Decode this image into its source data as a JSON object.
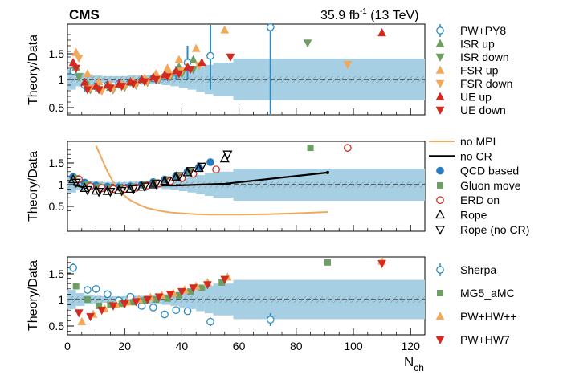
{
  "header": {
    "experiment": "CMS",
    "lumi_value": "35.9 fb",
    "lumi_exponent": "-1",
    "energy": "(13 TeV)"
  },
  "x_axis": {
    "label_main": "N",
    "label_sub": "ch",
    "ticks": [
      "0",
      "20",
      "40",
      "60",
      "80",
      "100",
      "120"
    ],
    "range": [
      0,
      125
    ]
  },
  "colors": {
    "band": "#a6cfe3",
    "pwpy8": "#2b8cc4",
    "isr": "#6d9f63",
    "fsr": "#f2a85a",
    "ue": "#d22a1e",
    "qcd": "#2b7bbf",
    "gluon": "#6d9f63",
    "nompi": "#f2a85a",
    "nocr": "#000000"
  },
  "chart_data": [
    {
      "type": "scatter",
      "ylabel": "Theory/Data",
      "ylim": [
        0.35,
        1.95
      ],
      "yticks": [
        "0.5",
        "1",
        "1.5"
      ],
      "uncertainty_band": {
        "x_edges": [
          0,
          3,
          6,
          9,
          12,
          15,
          18,
          21,
          24,
          27,
          30,
          33,
          36,
          39,
          42,
          45,
          48,
          51,
          58,
          125
        ],
        "up": [
          1.18,
          1.12,
          1.09,
          1.07,
          1.06,
          1.06,
          1.06,
          1.07,
          1.07,
          1.08,
          1.08,
          1.1,
          1.12,
          1.15,
          1.18,
          1.22,
          1.26,
          1.3,
          1.37
        ],
        "down": [
          0.82,
          0.88,
          0.91,
          0.93,
          0.94,
          0.94,
          0.94,
          0.93,
          0.93,
          0.92,
          0.92,
          0.9,
          0.88,
          0.85,
          0.82,
          0.78,
          0.74,
          0.7,
          0.63
        ]
      },
      "series": [
        {
          "name": "PW+PY8",
          "marker": "circle-open",
          "color_key": "pwpy8",
          "x": [
            2,
            6,
            10,
            14,
            18,
            22,
            26,
            30,
            34,
            38,
            42,
            50,
            71
          ],
          "y": [
            1.15,
            0.9,
            0.88,
            0.9,
            0.92,
            0.95,
            0.98,
            1.02,
            1.05,
            1.12,
            1.3,
            1.42,
            1.93
          ],
          "err": [
            0.05,
            0.12,
            0.04,
            0.03,
            0.03,
            0.03,
            0.03,
            0.04,
            0.06,
            0.12,
            0.3,
            0.6,
            1.6
          ]
        },
        {
          "name": "ISR up",
          "marker": "triangle-up",
          "color_key": "isr",
          "x": [
            3,
            7,
            11,
            15,
            19,
            23,
            27,
            31,
            35,
            39,
            44
          ],
          "y": [
            1.22,
            0.92,
            0.85,
            0.86,
            0.9,
            0.95,
            1.0,
            1.05,
            1.12,
            1.22,
            1.35
          ]
        },
        {
          "name": "ISR down",
          "marker": "triangle-down",
          "color_key": "isr",
          "x": [
            4,
            8,
            12,
            16,
            20,
            24,
            28,
            32,
            36,
            40,
            44,
            84
          ],
          "y": [
            1.05,
            0.82,
            0.8,
            0.82,
            0.86,
            0.9,
            0.95,
            1.0,
            1.05,
            1.1,
            1.18,
            1.65
          ]
        },
        {
          "name": "FSR up",
          "marker": "triangle-up",
          "color_key": "fsr",
          "x": [
            3,
            7,
            11,
            15,
            19,
            23,
            27,
            31,
            35,
            39,
            45,
            55
          ],
          "y": [
            1.48,
            1.1,
            0.96,
            0.9,
            0.92,
            0.96,
            1.02,
            1.1,
            1.2,
            1.35,
            1.55,
            1.88
          ]
        },
        {
          "name": "FSR down",
          "marker": "triangle-down",
          "color_key": "fsr",
          "x": [
            4,
            8,
            12,
            16,
            20,
            24,
            28,
            32,
            36,
            40,
            46,
            98
          ],
          "y": [
            1.38,
            0.85,
            0.8,
            0.84,
            0.88,
            0.92,
            0.97,
            1.02,
            1.08,
            1.15,
            1.25,
            1.27
          ]
        },
        {
          "name": "UE up",
          "marker": "triangle-up",
          "color_key": "ue",
          "x": [
            2,
            6,
            10,
            14,
            18,
            22,
            26,
            30,
            34,
            38,
            42,
            47,
            110
          ],
          "y": [
            1.3,
            0.95,
            0.88,
            0.9,
            0.92,
            0.96,
            1.0,
            1.04,
            1.08,
            1.15,
            1.22,
            1.3,
            1.83
          ]
        },
        {
          "name": "UE down",
          "marker": "triangle-down",
          "color_key": "ue",
          "x": [
            3,
            7,
            11,
            15,
            19,
            23,
            27,
            31,
            35,
            39,
            43,
            57
          ],
          "y": [
            1.2,
            0.82,
            0.82,
            0.85,
            0.88,
            0.92,
            0.96,
            1.0,
            1.05,
            1.1,
            1.18,
            1.4
          ]
        }
      ]
    },
    {
      "type": "scatter",
      "ylabel": "Theory/Data",
      "ylim": [
        0.15,
        1.9
      ],
      "yticks": [
        "0.5",
        "1",
        "1.5"
      ],
      "uncertainty_band": "same",
      "series": [
        {
          "name": "no MPI",
          "marker": "line",
          "color_key": "nompi",
          "x": [
            10,
            12,
            14,
            16,
            18,
            20,
            22,
            25,
            28,
            32,
            36,
            40,
            45,
            50,
            55,
            60,
            70,
            80,
            91
          ],
          "y": [
            1.9,
            1.6,
            1.3,
            1.06,
            0.88,
            0.74,
            0.64,
            0.54,
            0.46,
            0.4,
            0.36,
            0.34,
            0.32,
            0.31,
            0.31,
            0.31,
            0.32,
            0.34,
            0.37
          ]
        },
        {
          "name": "no CR",
          "marker": "line-dot",
          "color_key": "nocr",
          "x": [
            2,
            6,
            10,
            14,
            18,
            22,
            26,
            30,
            34,
            38,
            42,
            46,
            50,
            55,
            91
          ],
          "y": [
            1.0,
            0.93,
            0.92,
            0.93,
            0.94,
            0.95,
            0.96,
            0.97,
            0.98,
            0.98,
            0.99,
            1.0,
            1.01,
            1.02,
            1.28
          ]
        },
        {
          "name": "QCD based",
          "marker": "circle",
          "color_key": "qcd",
          "x": [
            2,
            6,
            10,
            14,
            18,
            22,
            26,
            30,
            34,
            38,
            42,
            46,
            50
          ],
          "y": [
            1.18,
            1.05,
            0.98,
            0.95,
            0.94,
            0.96,
            1.0,
            1.06,
            1.12,
            1.2,
            1.3,
            1.4,
            1.52
          ]
        },
        {
          "name": "Gluon move",
          "marker": "square",
          "color_key": "gluon",
          "x": [
            3,
            7,
            11,
            15,
            19,
            23,
            27,
            31,
            35,
            39,
            43,
            85
          ],
          "y": [
            1.15,
            1.0,
            0.95,
            0.92,
            0.92,
            0.95,
            1.0,
            1.05,
            1.12,
            1.2,
            1.3,
            1.85
          ]
        },
        {
          "name": "ERD on",
          "marker": "circle-open",
          "color_key": "ue",
          "x": [
            4,
            8,
            12,
            16,
            20,
            24,
            28,
            32,
            36,
            40,
            44,
            52,
            98
          ],
          "y": [
            1.12,
            0.96,
            0.92,
            0.9,
            0.9,
            0.93,
            0.98,
            1.03,
            1.08,
            1.15,
            1.25,
            1.35,
            1.85
          ]
        },
        {
          "name": "Rope",
          "marker": "triangle-up-open",
          "color_key": "nocr",
          "x": [
            2,
            6,
            10,
            14,
            18,
            22,
            26,
            30,
            34,
            38,
            42,
            46,
            55
          ],
          "y": [
            1.12,
            0.92,
            0.86,
            0.85,
            0.87,
            0.9,
            0.95,
            1.0,
            1.08,
            1.18,
            1.28,
            1.38,
            1.6
          ]
        },
        {
          "name": "Rope (no CR)",
          "marker": "triangle-down-open",
          "color_key": "nocr",
          "x": [
            3,
            7,
            11,
            15,
            19,
            23,
            27,
            31,
            35,
            39,
            43,
            47,
            56
          ],
          "y": [
            1.05,
            0.88,
            0.84,
            0.84,
            0.86,
            0.9,
            0.96,
            1.02,
            1.1,
            1.2,
            1.32,
            1.42,
            1.7
          ]
        }
      ]
    },
    {
      "type": "scatter",
      "ylabel": "Theory/Data",
      "ylim": [
        0.35,
        1.9
      ],
      "yticks": [
        "0.5",
        "1",
        "1.5"
      ],
      "uncertainty_band": "same",
      "series": [
        {
          "name": "Sherpa",
          "marker": "circle-open",
          "color_key": "pwpy8",
          "x": [
            2,
            7,
            10,
            14,
            18,
            22,
            26,
            30,
            34,
            38,
            42,
            50,
            71
          ],
          "y": [
            1.6,
            1.18,
            1.2,
            1.1,
            0.98,
            1.05,
            0.88,
            0.85,
            0.72,
            0.8,
            0.78,
            0.58,
            0.62
          ],
          "err": [
            0.08,
            0.02,
            0.02,
            0.02,
            0.02,
            0.02,
            0.02,
            0.03,
            0.03,
            0.04,
            0.05,
            0.08,
            0.12
          ]
        },
        {
          "name": "MG5_aMC",
          "marker": "square",
          "color_key": "gluon",
          "x": [
            3,
            7,
            11,
            15,
            19,
            23,
            27,
            31,
            35,
            39,
            43,
            47,
            54,
            91
          ],
          "y": [
            1.25,
            1.0,
            0.88,
            0.9,
            0.92,
            0.95,
            0.98,
            1.0,
            1.02,
            1.08,
            1.15,
            1.22,
            1.32,
            1.7
          ]
        },
        {
          "name": "PW+HW++",
          "marker": "triangle-up",
          "color_key": "fsr",
          "x": [
            5,
            9,
            13,
            17,
            21,
            25,
            29,
            33,
            37,
            41,
            45,
            49,
            56,
            110
          ],
          "y": [
            0.58,
            0.72,
            0.82,
            0.9,
            0.95,
            1.0,
            1.04,
            1.08,
            1.12,
            1.18,
            1.25,
            1.32,
            1.42,
            1.72
          ]
        },
        {
          "name": "PW+HW7",
          "marker": "triangle-down",
          "color_key": "ue",
          "x": [
            4,
            8,
            12,
            16,
            20,
            24,
            28,
            32,
            36,
            40,
            44,
            49,
            55,
            110
          ],
          "y": [
            0.75,
            0.68,
            0.8,
            0.88,
            0.92,
            0.96,
            1.0,
            1.05,
            1.1,
            1.15,
            1.22,
            1.28,
            1.38,
            1.68
          ]
        }
      ]
    }
  ]
}
